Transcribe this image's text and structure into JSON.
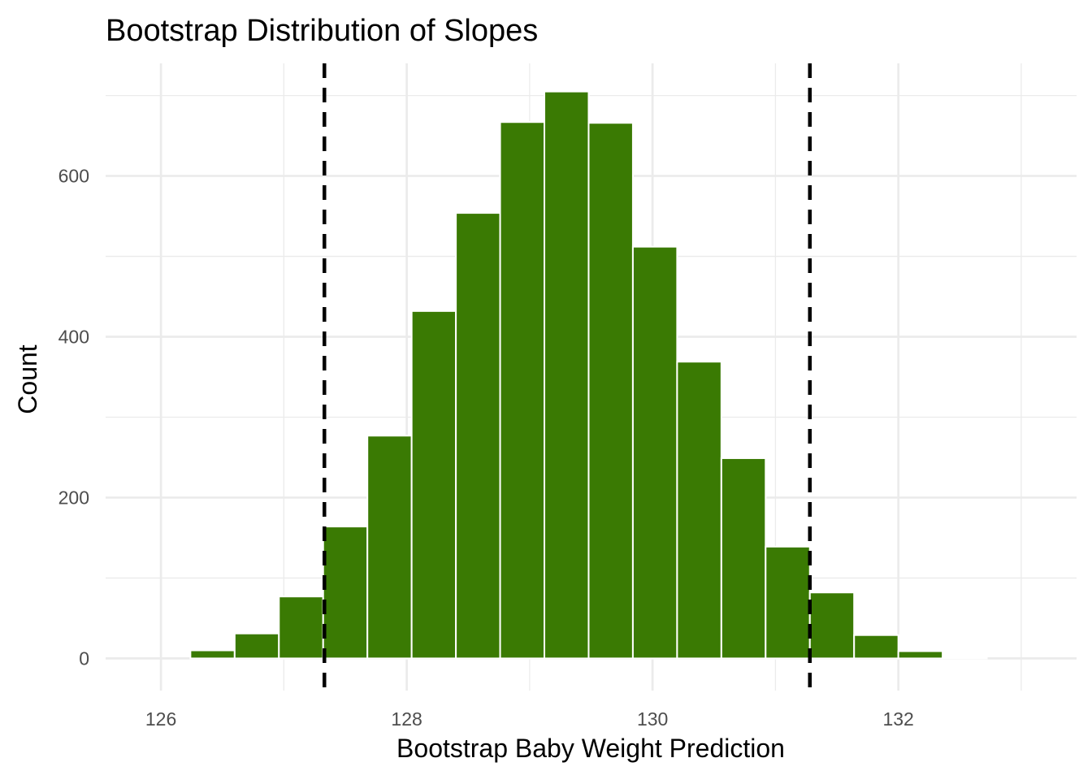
{
  "chart_data": {
    "type": "bar",
    "title": "Bootstrap Distribution of Slopes",
    "xlabel": "Bootstrap Baby Weight Prediction",
    "ylabel": "Count",
    "xlim": [
      125.55,
      133.45
    ],
    "ylim": [
      -40,
      740
    ],
    "x_ticks": [
      126,
      128,
      130,
      132
    ],
    "y_ticks": [
      0,
      200,
      400,
      600
    ],
    "bin_width": 0.36,
    "bins": [
      {
        "center": 126.0,
        "count": 0
      },
      {
        "center": 126.42,
        "count": 10
      },
      {
        "center": 126.78,
        "count": 31
      },
      {
        "center": 127.14,
        "count": 77
      },
      {
        "center": 127.5,
        "count": 164
      },
      {
        "center": 127.86,
        "count": 277
      },
      {
        "center": 128.22,
        "count": 432
      },
      {
        "center": 128.58,
        "count": 554
      },
      {
        "center": 128.94,
        "count": 667
      },
      {
        "center": 129.3,
        "count": 705
      },
      {
        "center": 129.66,
        "count": 666
      },
      {
        "center": 130.02,
        "count": 512
      },
      {
        "center": 130.38,
        "count": 369
      },
      {
        "center": 130.74,
        "count": 249
      },
      {
        "center": 131.1,
        "count": 139
      },
      {
        "center": 131.46,
        "count": 82
      },
      {
        "center": 131.82,
        "count": 29
      },
      {
        "center": 132.18,
        "count": 9
      },
      {
        "center": 132.54,
        "count": 1
      },
      {
        "center": 132.9,
        "count": 0
      }
    ],
    "reference_lines": [
      {
        "x": 127.33,
        "style": "dashed",
        "color": "#000000"
      },
      {
        "x": 131.28,
        "style": "dashed",
        "color": "#000000"
      }
    ],
    "grid": true,
    "legend": "none",
    "colors": {
      "bar_fill": "#3a7a03",
      "bar_outline": "#ffffff",
      "grid": "#ebebeb",
      "reference_line": "#000000"
    }
  }
}
